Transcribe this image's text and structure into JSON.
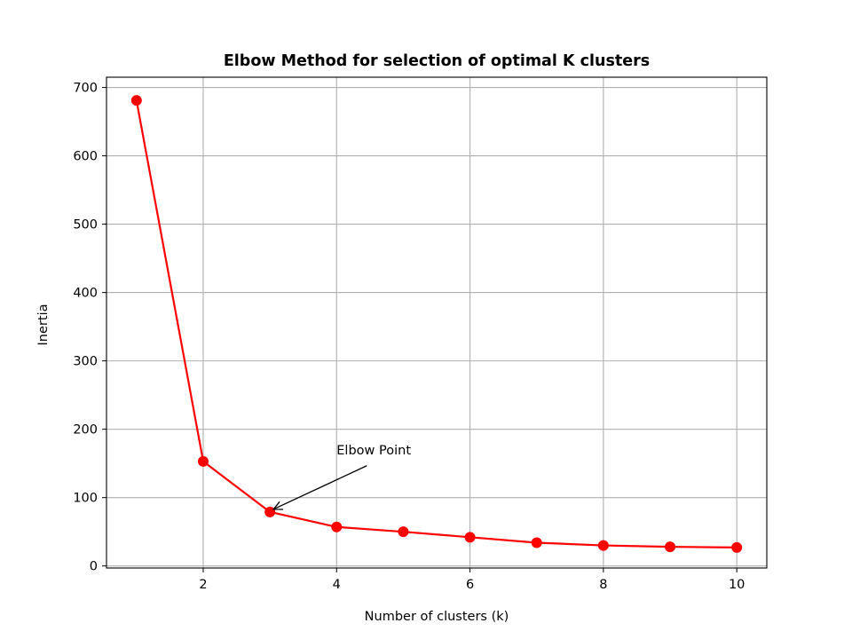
{
  "chart_data": {
    "type": "line",
    "title": "Elbow Method for selection of optimal K clusters",
    "xlabel": "Number of clusters (k)",
    "ylabel": "Inertia",
    "x": [
      1,
      2,
      3,
      4,
      5,
      6,
      7,
      8,
      9,
      10
    ],
    "series": [
      {
        "values": [
          681,
          153,
          79,
          57,
          50,
          42,
          34,
          30,
          28,
          27
        ],
        "color": "#ff0000",
        "marker": "circle"
      }
    ],
    "xlim": [
      0.55,
      10.45
    ],
    "ylim": [
      -3,
      715
    ],
    "xticks": [
      2,
      4,
      6,
      8,
      10
    ],
    "yticks": [
      0,
      100,
      200,
      300,
      400,
      500,
      600,
      700
    ],
    "grid": true,
    "annotation": {
      "text": "Elbow Point",
      "point": [
        3,
        79
      ],
      "text_at": [
        4,
        170
      ]
    }
  }
}
